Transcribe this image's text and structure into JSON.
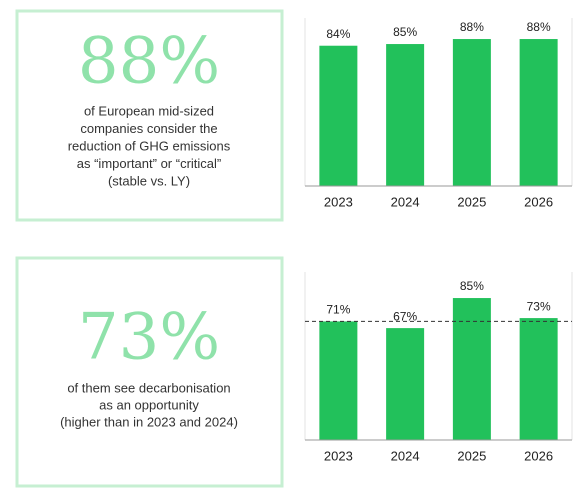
{
  "chart_data": [
    {
      "type": "bar",
      "highlight": "88%",
      "description": [
        "of European mid-sized",
        "companies consider the",
        "reduction of GHG emissions",
        "as “important” or “critical”",
        "(stable vs. LY)"
      ],
      "categories": [
        "2023",
        "2024",
        "2025",
        "2026"
      ],
      "values": [
        84,
        85,
        88,
        88
      ],
      "value_labels": [
        "84%",
        "85%",
        "88%",
        "88%"
      ],
      "color": "#22c15b",
      "ylim": [
        0,
        100
      ]
    },
    {
      "type": "bar",
      "highlight": "73%",
      "description": [
        "of them see decarbonisation",
        "as an opportunity",
        "(higher than in 2023 and 2024)"
      ],
      "categories": [
        "2023",
        "2024",
        "2025",
        "2026"
      ],
      "values": [
        71,
        67,
        85,
        73
      ],
      "value_labels": [
        "71%",
        "67%",
        "85%",
        "73%"
      ],
      "color": "#22c15b",
      "ylim": [
        0,
        100
      ],
      "reference_line": 71
    }
  ]
}
